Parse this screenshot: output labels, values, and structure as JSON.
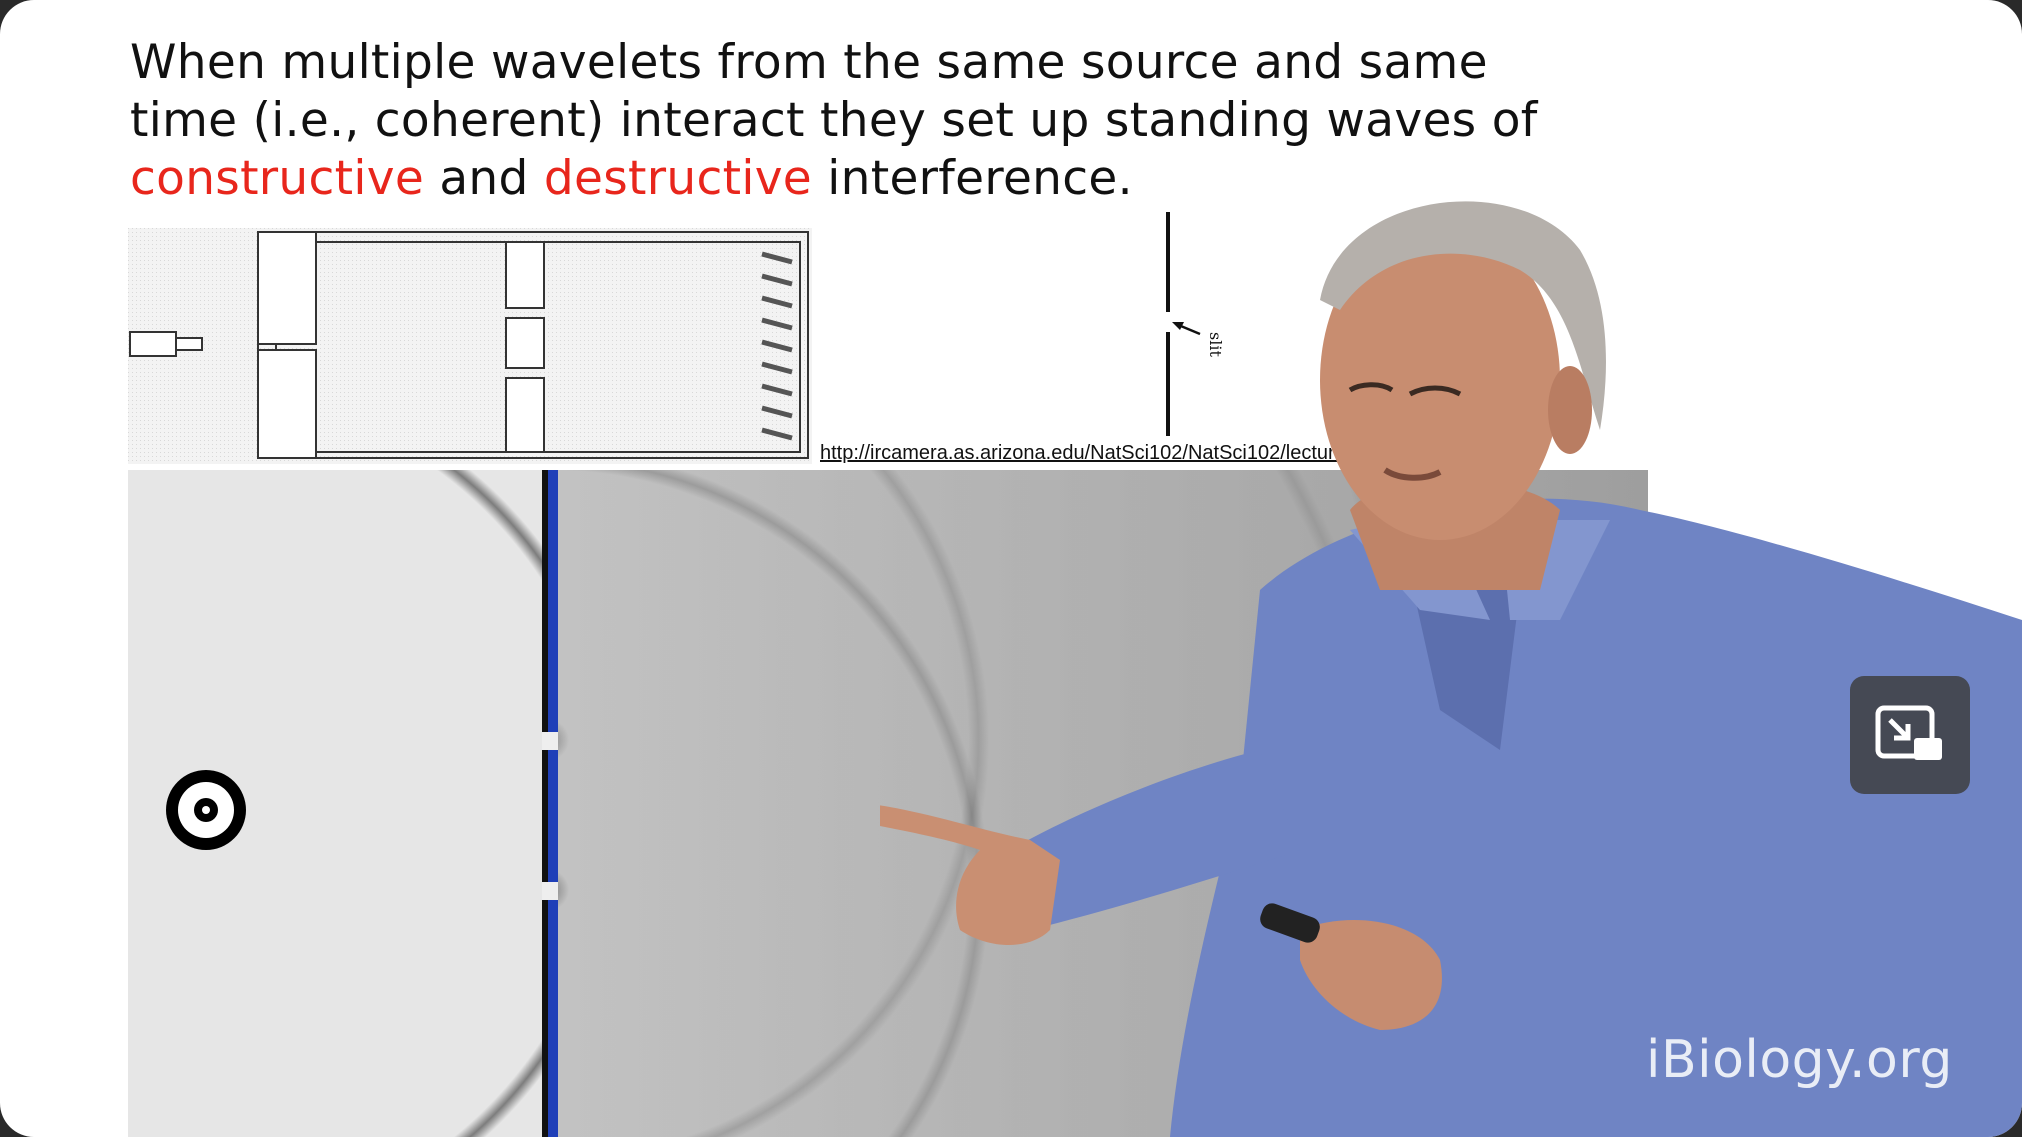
{
  "slide": {
    "title_part1": "When multiple wavelets from the same source  and same time (i.e., coherent) interact they set up standing waves of ",
    "title_word_constructive": "constructive",
    "title_and": " and ",
    "title_word_destructive": "destructive",
    "title_part2": " interference.",
    "slit_label": "slit",
    "source_url": "http://ircamera.as.arizona.edu/NatSci102/NatSci102/lectures/light.htm"
  },
  "player": {
    "watermark": "iBiology.org",
    "pip_icon": "exit-picture-in-picture-icon"
  },
  "colors": {
    "highlight": "#e8261c",
    "barrier_blue": "#1f3fb8",
    "shirt": "#6f84c4"
  }
}
